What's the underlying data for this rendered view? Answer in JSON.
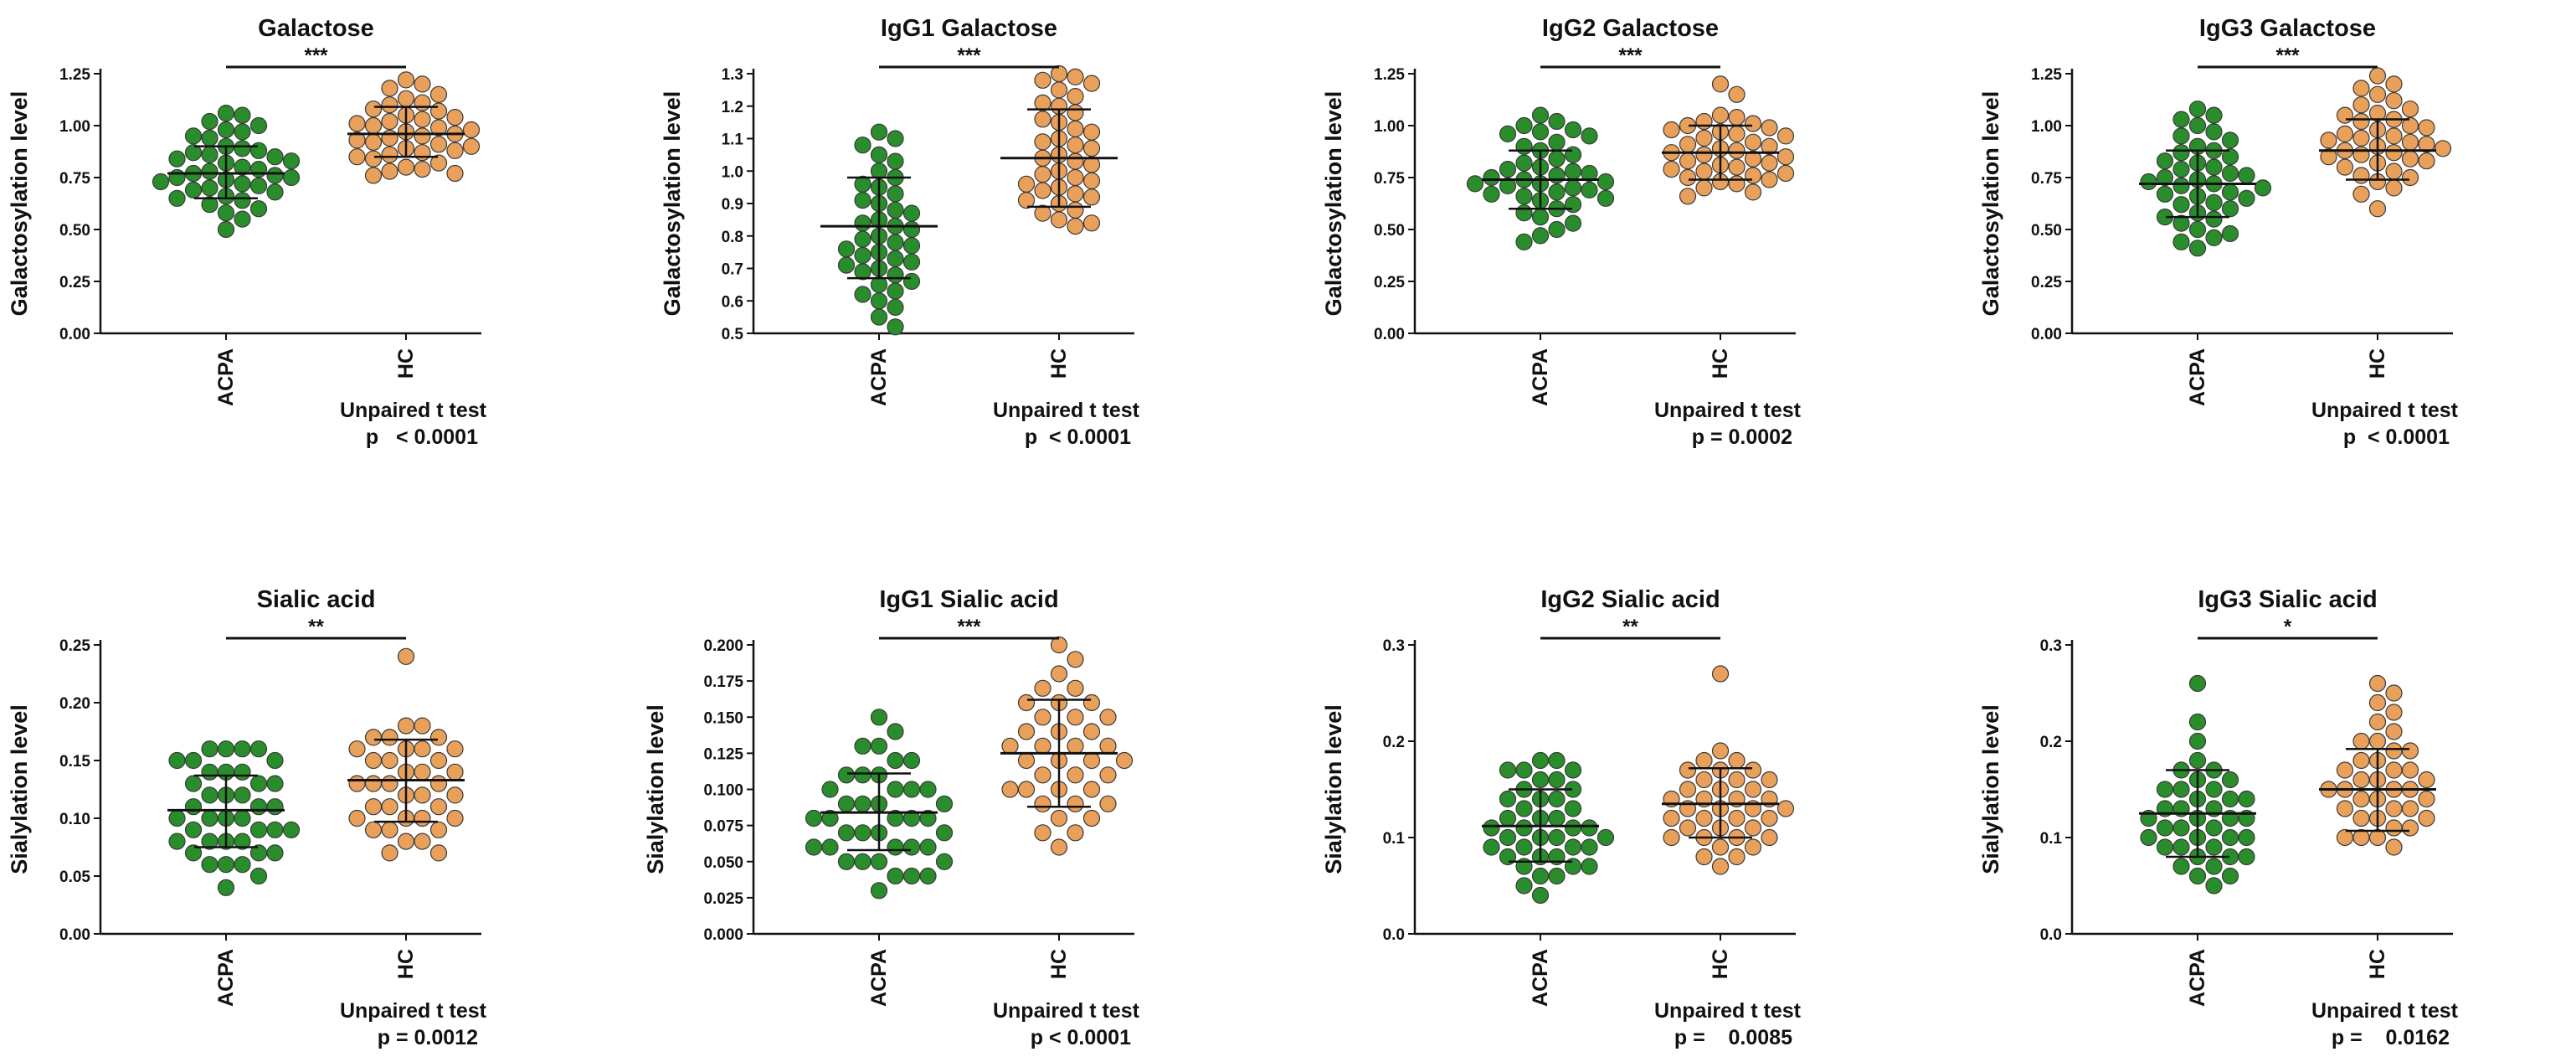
{
  "colors": {
    "ACPA": "#2a8d2c",
    "HC": "#e8a05b",
    "axis": "#111111"
  },
  "chart_data": [
    {
      "type": "scatter",
      "title": "Galactose",
      "ylabel": "Galactosylation level",
      "categories": [
        "ACPA",
        "HC"
      ],
      "ylim": [
        0,
        1.25
      ],
      "yticks": [
        "0.00",
        "0.25",
        "0.50",
        "0.75",
        "1.00",
        "1.25"
      ],
      "significance": "***",
      "stat_test": "Unpaired t test",
      "p_text": "p   < 0.0001",
      "series": [
        {
          "name": "ACPA",
          "mean": 0.77,
          "sd_low": 0.65,
          "sd_high": 0.9,
          "values": [
            1.02,
            0.98,
            1.05,
            1.0,
            0.95,
            0.94,
            0.97,
            1.06,
            0.89,
            0.88,
            0.9,
            0.87,
            0.86,
            0.85,
            0.84,
            0.83,
            0.82,
            0.8,
            0.79,
            0.78,
            0.77,
            0.76,
            0.75,
            0.75,
            0.74,
            0.73,
            0.72,
            0.71,
            0.7,
            0.69,
            0.68,
            0.66,
            0.65,
            0.64,
            0.62,
            0.6,
            0.58,
            0.55,
            0.5
          ]
        },
        {
          "name": "HC",
          "mean": 0.96,
          "sd_low": 0.85,
          "sd_high": 1.09,
          "values": [
            1.22,
            1.2,
            1.18,
            1.15,
            1.13,
            1.11,
            1.1,
            1.08,
            1.07,
            1.05,
            1.04,
            1.03,
            1.02,
            1.01,
            1.0,
            0.99,
            0.98,
            0.97,
            0.96,
            0.95,
            0.94,
            0.93,
            0.92,
            0.91,
            0.9,
            0.89,
            0.88,
            0.87,
            0.86,
            0.85,
            0.84,
            0.82,
            0.8,
            0.79,
            0.78,
            0.77,
            0.76
          ]
        }
      ]
    },
    {
      "type": "scatter",
      "title": "IgG1 Galactose",
      "ylabel": "Galactosylation level",
      "categories": [
        "ACPA",
        "HC"
      ],
      "ylim": [
        0.5,
        1.3
      ],
      "yticks": [
        "0.5",
        "0.6",
        "0.7",
        "0.8",
        "0.9",
        "1.0",
        "1.1",
        "1.2",
        "1.3"
      ],
      "significance": "***",
      "stat_test": "Unpaired t test",
      "p_text": "p  < 0.0001",
      "series": [
        {
          "name": "ACPA",
          "mean": 0.83,
          "sd_low": 0.67,
          "sd_high": 0.98,
          "values": [
            1.12,
            1.1,
            1.08,
            1.05,
            1.03,
            1.0,
            0.98,
            0.96,
            0.95,
            0.93,
            0.91,
            0.9,
            0.88,
            0.87,
            0.85,
            0.84,
            0.83,
            0.82,
            0.8,
            0.79,
            0.78,
            0.77,
            0.76,
            0.75,
            0.74,
            0.73,
            0.72,
            0.71,
            0.7,
            0.69,
            0.68,
            0.66,
            0.65,
            0.63,
            0.62,
            0.6,
            0.58,
            0.55,
            0.52
          ]
        },
        {
          "name": "HC",
          "mean": 1.04,
          "sd_low": 0.89,
          "sd_high": 1.19,
          "values": [
            1.3,
            1.29,
            1.28,
            1.27,
            1.25,
            1.23,
            1.21,
            1.2,
            1.18,
            1.16,
            1.15,
            1.13,
            1.12,
            1.1,
            1.09,
            1.08,
            1.07,
            1.05,
            1.04,
            1.03,
            1.02,
            1.0,
            0.99,
            0.98,
            0.97,
            0.96,
            0.95,
            0.94,
            0.93,
            0.92,
            0.91,
            0.9,
            0.88,
            0.87,
            0.85,
            0.84,
            0.83
          ]
        }
      ]
    },
    {
      "type": "scatter",
      "title": "IgG2 Galactose",
      "ylabel": "Galactosylation level",
      "categories": [
        "ACPA",
        "HC"
      ],
      "ylim": [
        0,
        1.25
      ],
      "yticks": [
        "0.00",
        "0.25",
        "0.50",
        "0.75",
        "1.00",
        "1.25"
      ],
      "significance": "***",
      "stat_test": "Unpaired t test",
      "p_text": "p = 0.0002",
      "series": [
        {
          "name": "ACPA",
          "mean": 0.74,
          "sd_low": 0.6,
          "sd_high": 0.88,
          "values": [
            1.05,
            1.02,
            1.0,
            0.98,
            0.97,
            0.96,
            0.95,
            0.92,
            0.9,
            0.88,
            0.86,
            0.84,
            0.82,
            0.8,
            0.79,
            0.78,
            0.77,
            0.76,
            0.75,
            0.74,
            0.73,
            0.72,
            0.72,
            0.71,
            0.7,
            0.69,
            0.68,
            0.67,
            0.66,
            0.65,
            0.64,
            0.62,
            0.6,
            0.58,
            0.56,
            0.53,
            0.5,
            0.47,
            0.44
          ]
        },
        {
          "name": "HC",
          "mean": 0.87,
          "sd_low": 0.74,
          "sd_high": 1.0,
          "values": [
            1.2,
            1.15,
            1.05,
            1.04,
            1.02,
            1.01,
            1.0,
            0.99,
            0.98,
            0.97,
            0.96,
            0.95,
            0.94,
            0.92,
            0.91,
            0.9,
            0.89,
            0.88,
            0.87,
            0.86,
            0.85,
            0.84,
            0.83,
            0.82,
            0.81,
            0.8,
            0.79,
            0.78,
            0.77,
            0.76,
            0.75,
            0.74,
            0.73,
            0.72,
            0.7,
            0.68,
            0.66
          ]
        }
      ]
    },
    {
      "type": "scatter",
      "title": "IgG3 Galactose",
      "ylabel": "Galactosylation level",
      "categories": [
        "ACPA",
        "HC"
      ],
      "ylim": [
        0,
        1.25
      ],
      "yticks": [
        "0.00",
        "0.25",
        "0.50",
        "0.75",
        "1.00",
        "1.25"
      ],
      "significance": "***",
      "stat_test": "Unpaired t test",
      "p_text": "p  < 0.0001",
      "series": [
        {
          "name": "ACPA",
          "mean": 0.72,
          "sd_low": 0.56,
          "sd_high": 0.88,
          "values": [
            1.08,
            1.05,
            1.03,
            1.0,
            0.97,
            0.95,
            0.93,
            0.9,
            0.88,
            0.87,
            0.85,
            0.83,
            0.82,
            0.8,
            0.79,
            0.77,
            0.76,
            0.75,
            0.74,
            0.73,
            0.72,
            0.71,
            0.7,
            0.68,
            0.67,
            0.66,
            0.65,
            0.63,
            0.62,
            0.6,
            0.58,
            0.56,
            0.55,
            0.53,
            0.5,
            0.48,
            0.46,
            0.44,
            0.41
          ]
        },
        {
          "name": "HC",
          "mean": 0.88,
          "sd_low": 0.74,
          "sd_high": 1.03,
          "values": [
            1.24,
            1.2,
            1.18,
            1.15,
            1.12,
            1.1,
            1.08,
            1.06,
            1.05,
            1.03,
            1.02,
            1.0,
            0.99,
            0.98,
            0.96,
            0.95,
            0.94,
            0.93,
            0.92,
            0.91,
            0.9,
            0.89,
            0.88,
            0.87,
            0.86,
            0.85,
            0.84,
            0.83,
            0.82,
            0.8,
            0.78,
            0.76,
            0.75,
            0.73,
            0.7,
            0.67,
            0.6
          ]
        }
      ]
    },
    {
      "type": "scatter",
      "title": "Sialic acid",
      "ylabel": "Sialylation level",
      "categories": [
        "ACPA",
        "HC"
      ],
      "ylim": [
        0,
        0.25
      ],
      "yticks": [
        "0.00",
        "0.05",
        "0.10",
        "0.15",
        "0.20",
        "0.25"
      ],
      "significance": "**",
      "stat_test": "Unpaired t test",
      "p_text": "p = 0.0012",
      "series": [
        {
          "name": "ACPA",
          "mean": 0.107,
          "sd_low": 0.075,
          "sd_high": 0.137,
          "values": [
            0.16,
            0.16,
            0.16,
            0.16,
            0.15,
            0.15,
            0.15,
            0.14,
            0.14,
            0.14,
            0.13,
            0.13,
            0.13,
            0.12,
            0.12,
            0.12,
            0.11,
            0.11,
            0.11,
            0.1,
            0.1,
            0.1,
            0.1,
            0.09,
            0.09,
            0.09,
            0.09,
            0.08,
            0.08,
            0.08,
            0.08,
            0.07,
            0.07,
            0.07,
            0.06,
            0.06,
            0.06,
            0.05,
            0.04
          ]
        },
        {
          "name": "HC",
          "mean": 0.133,
          "sd_low": 0.097,
          "sd_high": 0.168,
          "values": [
            0.24,
            0.18,
            0.18,
            0.17,
            0.17,
            0.17,
            0.16,
            0.16,
            0.16,
            0.16,
            0.15,
            0.15,
            0.15,
            0.14,
            0.14,
            0.14,
            0.13,
            0.13,
            0.13,
            0.13,
            0.12,
            0.12,
            0.12,
            0.11,
            0.11,
            0.11,
            0.1,
            0.1,
            0.1,
            0.1,
            0.09,
            0.09,
            0.09,
            0.08,
            0.08,
            0.07,
            0.07
          ]
        }
      ]
    },
    {
      "type": "scatter",
      "title": "IgG1 Sialic acid",
      "ylabel": "Sialylation level",
      "categories": [
        "ACPA",
        "HC"
      ],
      "ylim": [
        0,
        0.2
      ],
      "yticks": [
        "0.000",
        "0.025",
        "0.050",
        "0.075",
        "0.100",
        "0.125",
        "0.150",
        "0.175",
        "0.200"
      ],
      "significance": "***",
      "stat_test": "Unpaired t test",
      "p_text": "p < 0.0001",
      "series": [
        {
          "name": "ACPA",
          "mean": 0.084,
          "sd_low": 0.058,
          "sd_high": 0.111,
          "values": [
            0.15,
            0.14,
            0.13,
            0.13,
            0.12,
            0.12,
            0.11,
            0.11,
            0.11,
            0.1,
            0.1,
            0.1,
            0.1,
            0.09,
            0.09,
            0.09,
            0.09,
            0.08,
            0.08,
            0.08,
            0.08,
            0.08,
            0.07,
            0.07,
            0.07,
            0.07,
            0.06,
            0.06,
            0.06,
            0.06,
            0.06,
            0.05,
            0.05,
            0.05,
            0.05,
            0.04,
            0.04,
            0.04,
            0.03
          ]
        },
        {
          "name": "HC",
          "mean": 0.125,
          "sd_low": 0.088,
          "sd_high": 0.162,
          "values": [
            0.2,
            0.19,
            0.18,
            0.17,
            0.17,
            0.16,
            0.16,
            0.16,
            0.15,
            0.15,
            0.15,
            0.14,
            0.14,
            0.14,
            0.13,
            0.13,
            0.13,
            0.13,
            0.12,
            0.12,
            0.12,
            0.12,
            0.11,
            0.11,
            0.11,
            0.1,
            0.1,
            0.1,
            0.1,
            0.09,
            0.09,
            0.09,
            0.08,
            0.08,
            0.07,
            0.07,
            0.06
          ]
        }
      ]
    },
    {
      "type": "scatter",
      "title": "IgG2 Sialic acid",
      "ylabel": "Sialylation level",
      "categories": [
        "ACPA",
        "HC"
      ],
      "ylim": [
        0,
        0.3
      ],
      "yticks": [
        "0.0",
        "0.1",
        "0.2",
        "0.3"
      ],
      "significance": "**",
      "stat_test": "Unpaired t test",
      "p_text": "p =    0.0085",
      "series": [
        {
          "name": "ACPA",
          "mean": 0.112,
          "sd_low": 0.075,
          "sd_high": 0.15,
          "values": [
            0.18,
            0.18,
            0.17,
            0.17,
            0.17,
            0.16,
            0.16,
            0.15,
            0.15,
            0.14,
            0.14,
            0.14,
            0.13,
            0.13,
            0.12,
            0.12,
            0.12,
            0.11,
            0.11,
            0.11,
            0.11,
            0.1,
            0.1,
            0.1,
            0.1,
            0.09,
            0.09,
            0.09,
            0.09,
            0.08,
            0.08,
            0.08,
            0.07,
            0.07,
            0.07,
            0.06,
            0.06,
            0.05,
            0.04
          ]
        },
        {
          "name": "HC",
          "mean": 0.135,
          "sd_low": 0.1,
          "sd_high": 0.172,
          "values": [
            0.27,
            0.19,
            0.18,
            0.18,
            0.17,
            0.17,
            0.17,
            0.16,
            0.16,
            0.16,
            0.15,
            0.15,
            0.15,
            0.14,
            0.14,
            0.14,
            0.14,
            0.13,
            0.13,
            0.13,
            0.13,
            0.12,
            0.12,
            0.12,
            0.12,
            0.11,
            0.11,
            0.11,
            0.1,
            0.1,
            0.1,
            0.1,
            0.09,
            0.09,
            0.08,
            0.08,
            0.07
          ]
        }
      ]
    },
    {
      "type": "scatter",
      "title": "IgG3 Sialic acid",
      "ylabel": "Sialylation level",
      "categories": [
        "ACPA",
        "HC"
      ],
      "ylim": [
        0,
        0.3
      ],
      "yticks": [
        "0.0",
        "0.1",
        "0.2",
        "0.3"
      ],
      "significance": "*",
      "stat_test": "Unpaired t test",
      "p_text": "p =    0.0162",
      "series": [
        {
          "name": "ACPA",
          "mean": 0.125,
          "sd_low": 0.08,
          "sd_high": 0.17,
          "values": [
            0.26,
            0.22,
            0.2,
            0.18,
            0.17,
            0.17,
            0.16,
            0.16,
            0.15,
            0.15,
            0.15,
            0.14,
            0.14,
            0.14,
            0.13,
            0.13,
            0.13,
            0.12,
            0.12,
            0.12,
            0.12,
            0.11,
            0.11,
            0.11,
            0.1,
            0.1,
            0.1,
            0.1,
            0.09,
            0.09,
            0.09,
            0.08,
            0.08,
            0.08,
            0.07,
            0.07,
            0.06,
            0.06,
            0.05
          ]
        },
        {
          "name": "HC",
          "mean": 0.15,
          "sd_low": 0.107,
          "sd_high": 0.192,
          "values": [
            0.26,
            0.25,
            0.24,
            0.23,
            0.22,
            0.21,
            0.2,
            0.2,
            0.19,
            0.19,
            0.18,
            0.18,
            0.17,
            0.17,
            0.17,
            0.16,
            0.16,
            0.16,
            0.15,
            0.15,
            0.15,
            0.15,
            0.14,
            0.14,
            0.14,
            0.13,
            0.13,
            0.13,
            0.12,
            0.12,
            0.12,
            0.11,
            0.11,
            0.1,
            0.1,
            0.1,
            0.09
          ]
        }
      ]
    }
  ]
}
